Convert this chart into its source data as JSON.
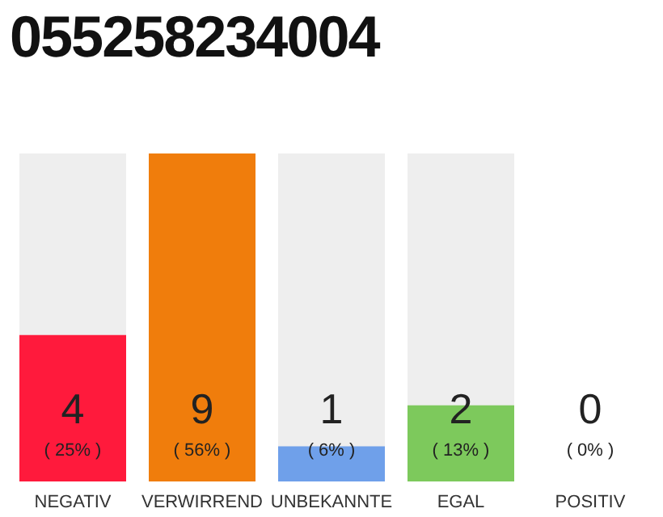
{
  "chart_data": {
    "type": "bar",
    "title": "055258234004",
    "categories": [
      "NEGATIV",
      "VERWIRREND",
      "UNBEKANNTE",
      "EGAL",
      "POSITIV"
    ],
    "values": [
      25,
      56,
      6,
      13,
      0
    ],
    "colors": [
      "#ff1a3c",
      "#f07d0c",
      "#6fa0ea",
      "#7dc95c",
      "#d9d9d9"
    ],
    "value_labels": [
      "( 25% )",
      "( 56% )",
      "( 6% )",
      "( 13% )",
      "( 0% )"
    ],
    "annotations": [
      "4",
      "9",
      "1",
      "2",
      "0"
    ]
  }
}
